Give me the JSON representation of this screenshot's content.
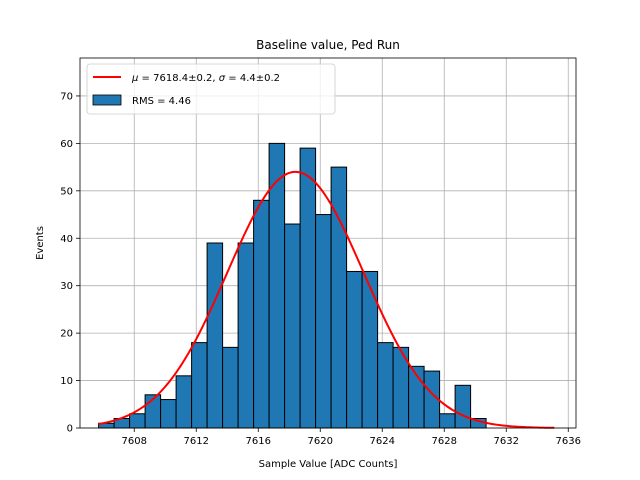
{
  "chart_data": {
    "type": "bar",
    "title": "Baseline value, Ped Run",
    "xlabel": "Sample Value [ADC Counts]",
    "ylabel": "Events",
    "xlim": [
      7604.5,
      7636.5
    ],
    "ylim": [
      0,
      78
    ],
    "xticks": [
      7608,
      7612,
      7616,
      7620,
      7624,
      7628,
      7632,
      7636
    ],
    "yticks": [
      0,
      10,
      20,
      30,
      40,
      50,
      60,
      70
    ],
    "grid": true,
    "legend_position": "top-left",
    "histogram": {
      "name": "RMS = 4.46",
      "color": "#1f77b4",
      "edges": [
        7605.7,
        7606.7,
        7607.7,
        7608.7,
        7609.7,
        7610.7,
        7611.7,
        7612.7,
        7613.7,
        7614.7,
        7615.7,
        7616.7,
        7617.7,
        7618.7,
        7619.7,
        7620.7,
        7621.7,
        7622.7,
        7623.7,
        7624.7,
        7625.7,
        7626.7,
        7627.7,
        7628.7,
        7629.7,
        7630.7
      ],
      "values": [
        1,
        2,
        3,
        7,
        6,
        11,
        18,
        39,
        17,
        39,
        48,
        60,
        43,
        59,
        45,
        55,
        33,
        33,
        18,
        17,
        13,
        12,
        3,
        9,
        2
      ]
    },
    "fit": {
      "name_parts": [
        "μ",
        " = 7618.4±0.2, ",
        "σ",
        " = 4.4±0.2"
      ],
      "mu": 7618.4,
      "sigma": 4.4,
      "amplitude": 54,
      "x_range": [
        7605.7,
        7635.1
      ],
      "color": "#ff0000"
    }
  }
}
